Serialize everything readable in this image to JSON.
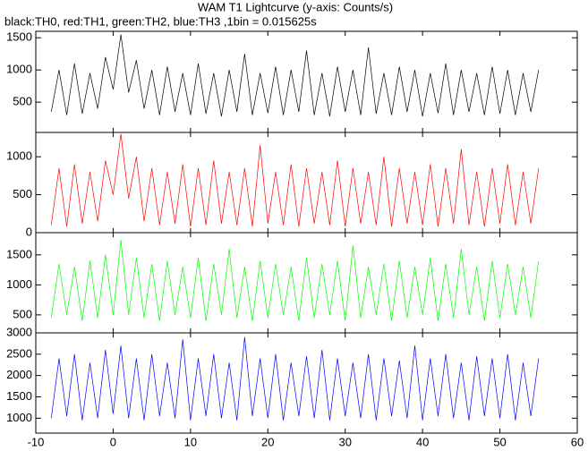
{
  "chart_data": {
    "type": "line",
    "title": "WAM T1 Lightcurve (y-axis: Counts/s)",
    "subtitle": "black:TH0, red:TH1, green:TH2, blue:TH3 ,1bin = 0.015625s",
    "xlim": [
      -10,
      60
    ],
    "xticks": [
      -10,
      0,
      10,
      20,
      30,
      40,
      50,
      60
    ],
    "x": [
      -8,
      -7,
      -6,
      -5,
      -4,
      -3,
      -2,
      -1,
      0,
      1,
      2,
      3,
      4,
      5,
      6,
      7,
      8,
      9,
      10,
      11,
      12,
      13,
      14,
      15,
      16,
      17,
      18,
      19,
      20,
      21,
      22,
      23,
      24,
      25,
      26,
      27,
      28,
      29,
      30,
      31,
      32,
      33,
      34,
      35,
      36,
      37,
      38,
      39,
      40,
      41,
      42,
      43,
      44,
      45,
      46,
      47,
      48,
      49,
      50,
      51,
      52,
      53,
      54,
      55
    ],
    "panels": [
      {
        "color": "#000000",
        "ylim": [
          30,
          1600
        ],
        "yticks": [
          500,
          1000,
          1500
        ],
        "values": [
          350,
          1000,
          300,
          1100,
          320,
          950,
          400,
          1200,
          700,
          1550,
          650,
          1150,
          400,
          1000,
          300,
          1050,
          350,
          950,
          300,
          1100,
          320,
          950,
          280,
          1000,
          350,
          1250,
          300,
          950,
          330,
          1050,
          300,
          1000,
          350,
          1300,
          300,
          950,
          280,
          1050,
          350,
          1000,
          300,
          1350,
          320,
          950,
          300,
          1050,
          350,
          1000,
          280,
          950,
          330,
          1100,
          300,
          1000,
          350,
          950,
          300,
          1050,
          320,
          1000,
          300,
          950,
          350,
          1000
        ]
      },
      {
        "color": "#ff0000",
        "ylim": [
          0,
          1320
        ],
        "yticks": [
          0,
          500,
          1000
        ],
        "values": [
          100,
          850,
          80,
          900,
          120,
          800,
          150,
          950,
          500,
          1300,
          450,
          1000,
          150,
          850,
          100,
          800,
          120,
          900,
          80,
          850,
          100,
          950,
          120,
          800,
          100,
          850,
          80,
          1150,
          120,
          800,
          100,
          900,
          80,
          850,
          120,
          800,
          100,
          950,
          80,
          850,
          120,
          800,
          100,
          1000,
          80,
          850,
          120,
          800,
          100,
          900,
          80,
          850,
          120,
          1100,
          100,
          800,
          80,
          850,
          120,
          900,
          100,
          800,
          120,
          850
        ]
      },
      {
        "color": "#00ff00",
        "ylim": [
          200,
          1870
        ],
        "yticks": [
          500,
          1000,
          1500
        ],
        "values": [
          450,
          1350,
          500,
          1300,
          400,
          1400,
          450,
          1500,
          500,
          1750,
          500,
          1450,
          450,
          1350,
          400,
          1400,
          500,
          1300,
          450,
          1450,
          400,
          1350,
          500,
          1600,
          450,
          1300,
          400,
          1400,
          450,
          1350,
          500,
          1300,
          400,
          1450,
          450,
          1350,
          500,
          1400,
          400,
          1650,
          450,
          1300,
          500,
          1350,
          400,
          1400,
          450,
          1300,
          500,
          1450,
          400,
          1350,
          450,
          1600,
          500,
          1300,
          400,
          1400,
          450,
          1350,
          500,
          1300,
          450,
          1400
        ]
      },
      {
        "color": "#0000ff",
        "ylim": [
          650,
          3000
        ],
        "yticks": [
          1000,
          1500,
          2000,
          2500,
          3000
        ],
        "values": [
          1000,
          2400,
          1050,
          2500,
          950,
          2300,
          1000,
          2600,
          1100,
          2700,
          1000,
          2400,
          950,
          2500,
          1050,
          2300,
          1000,
          2850,
          950,
          2400,
          1050,
          2500,
          1000,
          2300,
          950,
          2900,
          1050,
          2400,
          1000,
          2500,
          950,
          2300,
          1050,
          2450,
          1000,
          2600,
          950,
          2400,
          1050,
          2300,
          1000,
          2500,
          950,
          2400,
          1050,
          2350,
          1000,
          2700,
          950,
          2400,
          1050,
          2500,
          1000,
          2300,
          950,
          2450,
          1050,
          2400,
          1000,
          2500,
          950,
          2300,
          1050,
          2400
        ]
      }
    ]
  }
}
